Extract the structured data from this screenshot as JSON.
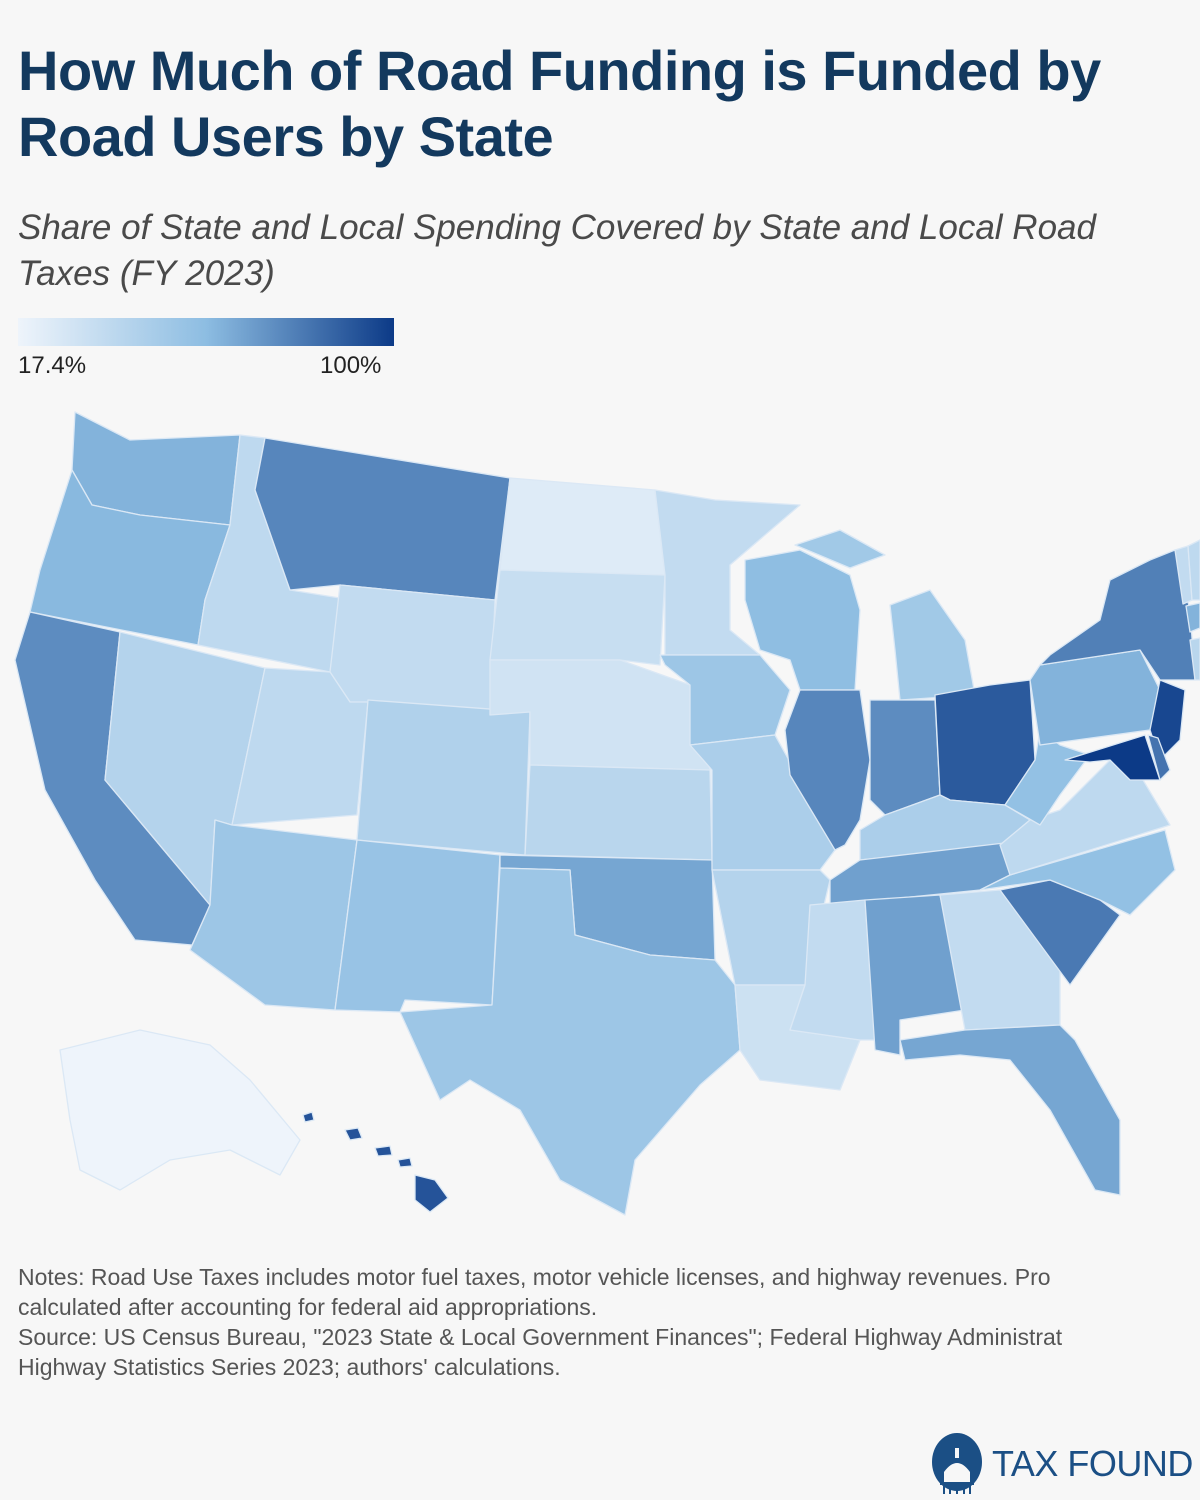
{
  "title": "How Much of Road Funding is Funded by Road Users by State",
  "subtitle_line1": "Share of State and Local Spending Covered by State and Local Road",
  "subtitle_line2": "Taxes (FY 2023)",
  "legend": {
    "min_label": "17.4%",
    "max_label": "100%",
    "min": 17.4,
    "max": 100,
    "colors": [
      "#eef4fb",
      "#8dbde2",
      "#0c3a87"
    ]
  },
  "notes": [
    "Notes: Road Use Taxes includes motor fuel taxes, motor vehicle licenses, and highway revenues. Pro",
    "calculated after accounting for federal aid appropriations.",
    "Source: US Census Bureau, \"2023 State & Local Government Finances\"; Federal Highway Administrat",
    "Highway Statistics Series 2023; authors' calculations."
  ],
  "logo": {
    "text": "TAX FOUND"
  },
  "chart_data": {
    "type": "choropleth",
    "title": "How Much of Road Funding is Funded by Road Users by State",
    "metric": "Share of State and Local Spending Covered by State and Local Road Taxes (FY 2023), %",
    "range": [
      17.4,
      100
    ],
    "values": {
      "WA": 62,
      "OR": 60,
      "CA": 74,
      "NV": 42,
      "ID": 38,
      "MT": 76,
      "WY": 36,
      "UT": 38,
      "CO": 44,
      "AZ": 52,
      "NM": 54,
      "ND": 24,
      "SD": 34,
      "NE": 30,
      "KS": 40,
      "OK": 66,
      "TX": 52,
      "MN": 36,
      "IA": 52,
      "MO": 46,
      "AR": 42,
      "LA": 32,
      "WI": 58,
      "IL": 76,
      "MI": 50,
      "IN": 74,
      "OH": 90,
      "KY": 46,
      "TN": 68,
      "MS": 36,
      "AL": 68,
      "GA": 36,
      "FL": 66,
      "SC": 80,
      "NC": 56,
      "VA": 38,
      "WV": 56,
      "PA": 62,
      "NY": 78,
      "NJ": 96,
      "DE": 82,
      "MD": 100,
      "VT": 36,
      "NH": 38,
      "MA": 62,
      "CT": 40,
      "AK": 17.4,
      "HI": 92
    }
  }
}
